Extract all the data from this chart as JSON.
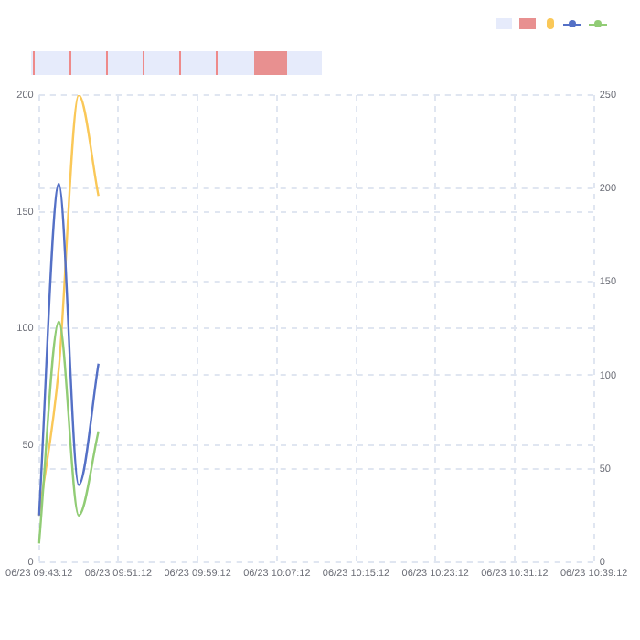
{
  "chart_data": {
    "type": "line",
    "categories": [
      "06/23 09:43:12",
      null,
      null,
      null,
      "06/23 09:51:12",
      null,
      null,
      null,
      "06/23 09:59:12",
      null,
      null,
      null,
      "06/23 10:07:12",
      null,
      null,
      null,
      "06/23 10:15:12",
      null,
      null,
      null,
      "06/23 10:23:12",
      null,
      null,
      null,
      "06/23 10:31:12",
      null,
      null,
      null,
      "06/23 10:39:12"
    ],
    "series": [
      {
        "color": "#5470c6",
        "values": [
          20,
          162,
          33,
          85,
          null,
          null,
          null,
          null,
          null,
          null,
          null,
          null,
          null,
          null,
          null,
          null,
          null,
          null,
          null,
          null,
          null,
          null,
          null,
          null,
          null,
          null,
          null,
          null,
          null
        ]
      },
      {
        "color": "#91cc75",
        "values": [
          8,
          103,
          20,
          56,
          null,
          null,
          null,
          null,
          null,
          null,
          null,
          null,
          null,
          null,
          null,
          null,
          null,
          null,
          null,
          null,
          null,
          null,
          null,
          null,
          null,
          null,
          null,
          null,
          null
        ]
      },
      {
        "color": "#fac858",
        "axis": "y2",
        "values": [
          25,
          104,
          250,
          196,
          null,
          null,
          null,
          null,
          null,
          null,
          null,
          null,
          null,
          null,
          null,
          null,
          null,
          null,
          null,
          null,
          null,
          null,
          null,
          null,
          null,
          null,
          null,
          null,
          null
        ]
      }
    ],
    "ylim": [
      0,
      200
    ],
    "yticks": [
      0,
      50,
      100,
      150,
      200
    ],
    "y2lim": [
      0,
      250
    ],
    "y2ticks": [
      0,
      50,
      100,
      150,
      200,
      250
    ],
    "grid": true,
    "marker": "none",
    "line_style": "solid"
  }
}
